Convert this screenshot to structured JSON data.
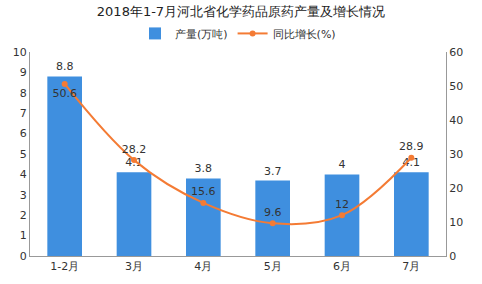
{
  "chart_data": {
    "type": "bar",
    "title": "2018年1-7月河北省化学药品原药产量及增长情况",
    "categories": [
      "1-2月",
      "3月",
      "4月",
      "5月",
      "6月",
      "7月"
    ],
    "series": [
      {
        "name": "产量(万吨)",
        "type": "bar",
        "color": "#3f8fdf",
        "values": [
          8.8,
          4.1,
          3.8,
          3.7,
          4,
          4.1
        ]
      },
      {
        "name": "同比增长(%)",
        "type": "line",
        "axis": "y2",
        "color": "#f47b34",
        "marker": "circle",
        "values": [
          50.6,
          28.2,
          15.6,
          9.6,
          12,
          28.9
        ]
      }
    ],
    "ylim": [
      0,
      10
    ],
    "yticks": [
      0,
      1,
      2,
      3,
      4,
      5,
      6,
      7,
      8,
      9,
      10
    ],
    "y2lim": [
      0,
      60
    ],
    "y2ticks": [
      0,
      10,
      20,
      30,
      40,
      50,
      60
    ],
    "grid": false,
    "legend": "top",
    "data_labels": true
  }
}
